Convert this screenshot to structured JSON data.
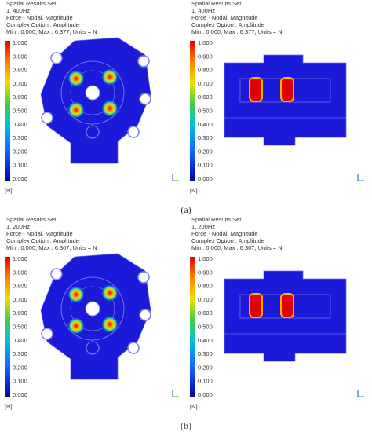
{
  "panels": [
    {
      "label": "(a)",
      "views": [
        {
          "header": [
            "Spatial Results Set",
            "1,   400Hz",
            "Force - Nodal, Magnitude",
            "Complex Option : Amplitude",
            "Min : 0.000, Max : 6.377, Units = N"
          ],
          "scale": [
            "1.000",
            "0.900",
            "0.800",
            "0.700",
            "0.600",
            "0.500",
            "0.400",
            "0.300",
            "0.200",
            "0.100",
            "0.000"
          ],
          "unit": "[N]"
        },
        {
          "header": [
            "Spatial Results Set",
            "1,   400Hz",
            "Force - Nodal, Magnitude",
            "Complex Option : Amplitude",
            "Min : 0.000, Max : 6.377, Units = N"
          ],
          "scale": [
            "1.000",
            "0.900",
            "0.800",
            "0.700",
            "0.600",
            "0.500",
            "0.400",
            "0.300",
            "0.200",
            "0.100",
            "0.000"
          ],
          "unit": "[N]"
        }
      ]
    },
    {
      "label": "(b)",
      "views": [
        {
          "header": [
            "Spatial Results Set",
            "1,   200Hz",
            "Force - Nodal, Magnitude",
            "Complex Option : Amplitude",
            "Min : 0.000, Max : 6.307, Units = N"
          ],
          "scale": [
            "1.000",
            "0.900",
            "0.800",
            "0.700",
            "0.600",
            "0.500",
            "0.400",
            "0.300",
            "0.200",
            "0.100",
            "0.000"
          ],
          "unit": "[N]"
        },
        {
          "header": [
            "Spatial Results Set",
            "1,   200Hz",
            "Force - Nodal, Magnitude",
            "Complex Option : Amplitude",
            "Min : 0.000, Max : 6.307, Units = N"
          ],
          "scale": [
            "1.000",
            "0.900",
            "0.800",
            "0.700",
            "0.600",
            "0.500",
            "0.400",
            "0.300",
            "0.200",
            "0.100",
            "0.000"
          ],
          "unit": "[N]"
        }
      ]
    }
  ]
}
